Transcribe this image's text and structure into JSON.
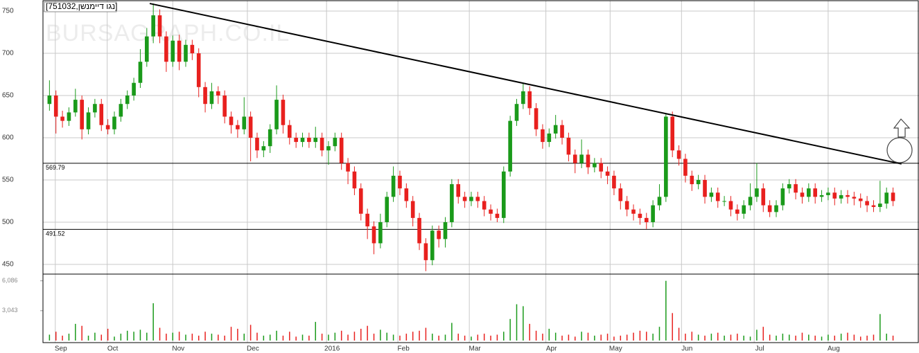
{
  "chart_data": {
    "type": "candlestick",
    "title": "[נגו דיימנשן,751032]",
    "watermark": "BURSAGRAPH.CO.IL",
    "up_color": "#1a9a1a",
    "down_color": "#e8201e",
    "grid": true,
    "xlim": [
      -1,
      134
    ],
    "xticks": [
      {
        "value": 0.9,
        "label": "Sep"
      },
      {
        "value": 8.9,
        "label": "Oct"
      },
      {
        "value": 19.0,
        "label": "Nov"
      },
      {
        "value": 30.5,
        "label": "Dec"
      },
      {
        "value": 42.7,
        "label": "2016"
      },
      {
        "value": 53.7,
        "label": "Feb"
      },
      {
        "value": 64.7,
        "label": "Mar"
      },
      {
        "value": 76.5,
        "label": "Apr"
      },
      {
        "value": 86.4,
        "label": "May"
      },
      {
        "value": 97.4,
        "label": "Jun"
      },
      {
        "value": 108.6,
        "label": "Jul"
      },
      {
        "value": 120.0,
        "label": "Aug"
      }
    ],
    "ylim": [
      438.5,
      761.5
    ],
    "yticks": [
      450,
      500,
      550,
      600,
      650,
      700,
      750
    ],
    "levels": [
      569.79,
      491.52
    ],
    "trendline": {
      "start": [
        15.45,
        759
      ],
      "end": [
        131.3,
        569
      ]
    },
    "open": [
      640,
      650,
      625,
      620,
      630,
      645,
      610,
      630,
      640,
      615,
      610,
      625,
      640,
      650,
      665,
      690,
      720,
      745,
      720,
      690,
      715,
      690,
      710,
      700,
      660,
      640,
      655,
      650,
      625,
      615,
      610,
      625,
      600,
      585,
      590,
      610,
      645,
      615,
      600,
      595,
      600,
      595,
      600,
      585,
      590,
      600,
      570,
      560,
      540,
      510,
      495,
      475,
      500,
      530,
      555,
      540,
      525,
      505,
      475,
      455,
      490,
      480,
      500,
      545,
      530,
      525,
      530,
      525,
      515,
      510,
      505,
      560,
      620,
      640,
      655,
      635,
      610,
      595,
      605,
      615,
      600,
      580,
      570,
      580,
      565,
      570,
      560,
      555,
      540,
      525,
      515,
      510,
      505,
      500,
      520,
      530,
      625,
      585,
      575,
      555,
      545,
      550,
      530,
      535,
      525,
      525,
      515,
      510,
      520,
      530,
      540,
      520,
      512,
      520,
      540,
      545,
      535,
      530,
      540,
      530,
      532,
      535,
      528,
      532,
      530,
      528,
      525,
      520,
      518,
      522,
      535
    ],
    "high": [
      668,
      656,
      632,
      636,
      658,
      650,
      636,
      646,
      646,
      622,
      631,
      646,
      656,
      671,
      705,
      730,
      759,
      752,
      726,
      721,
      722,
      716,
      716,
      706,
      666,
      665,
      661,
      656,
      631,
      621,
      648,
      631,
      606,
      596,
      616,
      662,
      651,
      621,
      606,
      606,
      606,
      613,
      606,
      596,
      606,
      606,
      576,
      566,
      546,
      516,
      501,
      510,
      536,
      566,
      561,
      546,
      531,
      511,
      481,
      496,
      496,
      506,
      551,
      551,
      536,
      536,
      536,
      531,
      521,
      516,
      566,
      626,
      646,
      665,
      661,
      641,
      616,
      611,
      627,
      621,
      606,
      586,
      598,
      586,
      576,
      576,
      566,
      561,
      546,
      531,
      521,
      516,
      511,
      526,
      545,
      628,
      631,
      591,
      581,
      561,
      556,
      556,
      541,
      541,
      531,
      531,
      521,
      526,
      546,
      570,
      546,
      526,
      526,
      546,
      551,
      551,
      541,
      546,
      546,
      538,
      541,
      541,
      538,
      538,
      536,
      534,
      531,
      526,
      549,
      541,
      541
    ],
    "low": [
      632,
      605,
      612,
      614,
      625,
      598,
      604,
      624,
      608,
      604,
      604,
      619,
      634,
      644,
      659,
      684,
      712,
      712,
      678,
      684,
      680,
      684,
      692,
      648,
      630,
      634,
      640,
      617,
      605,
      600,
      604,
      572,
      576,
      577,
      582,
      604,
      605,
      592,
      588,
      589,
      588,
      588,
      578,
      568,
      584,
      562,
      545,
      532,
      502,
      480,
      462,
      469,
      494,
      524,
      532,
      517,
      495,
      467,
      442,
      449,
      470,
      470,
      494,
      522,
      517,
      519,
      517,
      507,
      502,
      500,
      499,
      554,
      614,
      634,
      627,
      602,
      587,
      589,
      599,
      592,
      572,
      558,
      564,
      557,
      559,
      552,
      545,
      532,
      515,
      507,
      502,
      497,
      492,
      494,
      514,
      524,
      577,
      567,
      547,
      537,
      539,
      522,
      524,
      517,
      519,
      507,
      502,
      504,
      514,
      524,
      512,
      506,
      506,
      514,
      534,
      527,
      522,
      524,
      522,
      524,
      526,
      520,
      522,
      522,
      520,
      517,
      512,
      512,
      512,
      516,
      519
    ],
    "close": [
      650,
      625,
      620,
      630,
      645,
      610,
      630,
      640,
      615,
      610,
      625,
      640,
      650,
      665,
      690,
      720,
      745,
      720,
      690,
      715,
      690,
      710,
      700,
      660,
      640,
      655,
      650,
      625,
      615,
      610,
      625,
      600,
      585,
      590,
      610,
      645,
      615,
      600,
      595,
      600,
      595,
      600,
      585,
      590,
      600,
      570,
      560,
      540,
      510,
      495,
      475,
      500,
      530,
      555,
      540,
      525,
      505,
      475,
      455,
      490,
      480,
      500,
      545,
      530,
      525,
      530,
      525,
      515,
      510,
      505,
      560,
      620,
      640,
      655,
      635,
      610,
      595,
      605,
      615,
      600,
      580,
      570,
      580,
      565,
      570,
      560,
      555,
      540,
      525,
      515,
      510,
      505,
      500,
      520,
      530,
      625,
      585,
      575,
      555,
      545,
      550,
      530,
      535,
      525,
      525,
      515,
      510,
      520,
      530,
      540,
      520,
      512,
      520,
      540,
      545,
      535,
      530,
      540,
      530,
      532,
      535,
      528,
      532,
      530,
      528,
      525,
      520,
      518,
      522,
      535,
      525
    ],
    "volume": {
      "ylim": [
        0,
        6700
      ],
      "yticks": [
        {
          "value": 6086,
          "label": "6,086"
        },
        {
          "value": 3043,
          "label": "3,043"
        }
      ],
      "values": [
        600,
        900,
        500,
        700,
        1700,
        1500,
        500,
        800,
        600,
        1200,
        400,
        700,
        1000,
        900,
        1100,
        800,
        3800,
        1300,
        700,
        800,
        900,
        600,
        700,
        500,
        900,
        700,
        600,
        500,
        1400,
        1200,
        700,
        1600,
        800,
        500,
        600,
        1000,
        500,
        900,
        400,
        600,
        500,
        1900,
        700,
        600,
        800,
        1000,
        600,
        900,
        1200,
        1500,
        700,
        1100,
        800,
        600,
        500,
        700,
        900,
        1000,
        1300,
        700,
        500,
        600,
        1800,
        700,
        500,
        400,
        600,
        700,
        500,
        600,
        900,
        2200,
        3700,
        3500,
        1700,
        1000,
        700,
        1200,
        800,
        500,
        600,
        400,
        900,
        800,
        500,
        600,
        700,
        400,
        500,
        600,
        800,
        1000,
        900,
        700,
        1400,
        6086,
        2800,
        1300,
        700,
        900,
        600,
        500,
        700,
        800,
        500,
        600,
        700,
        500,
        400,
        1100,
        1400,
        600,
        500,
        700,
        600,
        500,
        800,
        600,
        500,
        400,
        600,
        500,
        700,
        800,
        600,
        400,
        500,
        600,
        2700,
        700,
        500
      ]
    }
  }
}
